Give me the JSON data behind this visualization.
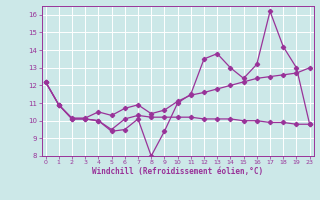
{
  "xlabel": "Windchill (Refroidissement éolien,°C)",
  "bg_color": "#cce8e8",
  "line_color": "#993399",
  "grid_color": "#aadddd",
  "ylim": [
    8,
    16.5
  ],
  "yticks": [
    8,
    9,
    10,
    11,
    12,
    13,
    14,
    15,
    16
  ],
  "xtick_labels": [
    "0",
    "1",
    "2",
    "3",
    "4",
    "5",
    "6",
    "7",
    "8",
    "9",
    "10",
    "11",
    "12",
    "13",
    "14",
    "15",
    "16",
    "17",
    "18",
    "19",
    "23"
  ],
  "line1_x": [
    0,
    1,
    2,
    3,
    4,
    5,
    6,
    7,
    8,
    9,
    10,
    11,
    12,
    13,
    14,
    15,
    16,
    17,
    18,
    19,
    20
  ],
  "line1_y": [
    12.2,
    10.9,
    10.1,
    10.1,
    10.0,
    9.4,
    9.5,
    10.1,
    8.0,
    9.4,
    11.0,
    11.5,
    13.5,
    13.8,
    13.0,
    12.4,
    13.2,
    16.2,
    14.2,
    13.0,
    9.8
  ],
  "line2_x": [
    0,
    1,
    2,
    3,
    4,
    5,
    6,
    7,
    8,
    9,
    10,
    11,
    12,
    13,
    14,
    15,
    16,
    17,
    18,
    19,
    20
  ],
  "line2_y": [
    12.2,
    10.9,
    10.15,
    10.15,
    10.5,
    10.3,
    10.7,
    10.9,
    10.4,
    10.6,
    11.1,
    11.45,
    11.6,
    11.8,
    12.0,
    12.2,
    12.4,
    12.5,
    12.6,
    12.7,
    13.0
  ],
  "line3_x": [
    0,
    1,
    2,
    3,
    4,
    5,
    6,
    7,
    8,
    9,
    10,
    11,
    12,
    13,
    14,
    15,
    16,
    17,
    18,
    19,
    20
  ],
  "line3_y": [
    12.2,
    10.9,
    10.1,
    10.1,
    10.0,
    9.5,
    10.1,
    10.3,
    10.2,
    10.2,
    10.2,
    10.2,
    10.1,
    10.1,
    10.1,
    10.0,
    10.0,
    9.9,
    9.9,
    9.8,
    9.8
  ]
}
